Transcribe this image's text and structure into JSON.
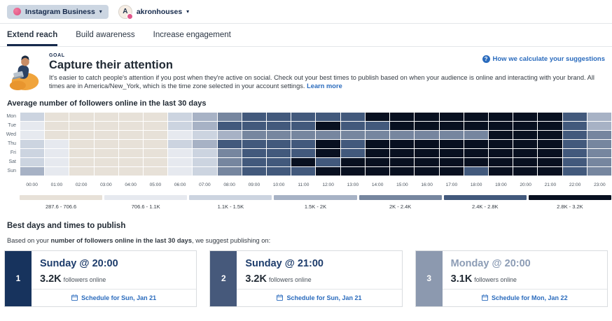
{
  "colors": {
    "accent_blue": "#2a6bbd",
    "navy": "#15294b",
    "pink": "#e0568b",
    "pill_bg": "#ccd6e2"
  },
  "topbar": {
    "channel_label": "Instagram Business",
    "account_name": "akronhouses",
    "avatar_letter": "A"
  },
  "tabs": [
    {
      "label": "Extend reach",
      "active": true
    },
    {
      "label": "Build awareness",
      "active": false
    },
    {
      "label": "Increase engagement",
      "active": false
    }
  ],
  "goal": {
    "eyebrow": "GOAL",
    "title": "Capture their attention",
    "description": "It's easier to catch people's attention if you post when they're active on social. Check out your best times to publish based on when your audience is online and interacting with your brand. All times are in America/New_York, which is the time zone selected in your account settings.",
    "learn_more_label": "Learn more",
    "help_link_label": "How we calculate your suggestions"
  },
  "chart_data": {
    "type": "heatmap",
    "title": "Average number of followers online in the last 30 days",
    "x": [
      "00:00",
      "01:00",
      "02:00",
      "03:00",
      "04:00",
      "05:00",
      "06:00",
      "07:00",
      "08:00",
      "09:00",
      "10:00",
      "11:00",
      "12:00",
      "13:00",
      "14:00",
      "15:00",
      "16:00",
      "17:00",
      "18:00",
      "19:00",
      "20:00",
      "21:00",
      "22:00",
      "23:00"
    ],
    "y": [
      "Mon",
      "Tue",
      "Wed",
      "Thu",
      "Fri",
      "Sat",
      "Sun"
    ],
    "palette": [
      "#e7e1d8",
      "#e6e9ef",
      "#ccd4e0",
      "#a7b2c5",
      "#76869f",
      "#42597c",
      "#081020"
    ],
    "legend": [
      "287.6 - 706.6",
      "706.6 - 1.1K",
      "1.1K - 1.5K",
      "1.5K - 2K",
      "2K - 2.4K",
      "2.4K - 2.8K",
      "2.8K - 3.2K"
    ],
    "grid": [
      [
        3,
        1,
        1,
        1,
        1,
        1,
        3,
        4,
        5,
        6,
        6,
        6,
        6,
        6,
        7,
        7,
        7,
        7,
        7,
        7,
        7,
        7,
        6,
        4
      ],
      [
        2,
        1,
        1,
        1,
        1,
        1,
        3,
        4,
        6,
        6,
        6,
        6,
        7,
        6,
        6,
        7,
        7,
        7,
        7,
        7,
        7,
        7,
        6,
        4
      ],
      [
        2,
        1,
        1,
        1,
        1,
        1,
        2,
        3,
        4,
        5,
        5,
        5,
        5,
        5,
        5,
        5,
        5,
        5,
        5,
        7,
        7,
        7,
        6,
        5
      ],
      [
        3,
        2,
        1,
        1,
        1,
        1,
        3,
        4,
        6,
        6,
        6,
        6,
        7,
        6,
        7,
        7,
        7,
        7,
        7,
        7,
        7,
        7,
        6,
        5
      ],
      [
        3,
        2,
        1,
        1,
        1,
        1,
        2,
        3,
        5,
        6,
        6,
        6,
        7,
        6,
        7,
        7,
        7,
        7,
        7,
        7,
        7,
        7,
        6,
        5
      ],
      [
        3,
        2,
        1,
        1,
        1,
        1,
        2,
        3,
        5,
        6,
        6,
        7,
        6,
        7,
        7,
        7,
        7,
        7,
        7,
        7,
        7,
        7,
        6,
        5
      ],
      [
        4,
        2,
        1,
        1,
        1,
        1,
        2,
        3,
        5,
        6,
        6,
        6,
        7,
        7,
        7,
        7,
        7,
        7,
        6,
        7,
        7,
        7,
        6,
        5
      ]
    ]
  },
  "best_times": {
    "title": "Best days and times to publish",
    "intro_prefix": "Based on your ",
    "intro_bold": "number of followers online in the last 30 days",
    "intro_suffix": ", we suggest publishing on:",
    "cards": [
      {
        "rank": "1",
        "rank_color": "#17335d",
        "title": "Sunday @ 20:00",
        "title_color": "#1d3c6b",
        "value": "3.2K",
        "value_suffix": "followers online",
        "schedule_label": "Schedule for Sun, Jan 21"
      },
      {
        "rank": "2",
        "rank_color": "#46597b",
        "title": "Sunday @ 21:00",
        "title_color": "#1d3c6b",
        "value": "3.2K",
        "value_suffix": "followers online",
        "schedule_label": "Schedule for Sun, Jan 21"
      },
      {
        "rank": "3",
        "rank_color": "#8c99af",
        "title": "Monday @ 20:00",
        "title_color": "#8c9cb5",
        "value": "3.1K",
        "value_suffix": "followers online",
        "schedule_label": "Schedule for Mon, Jan 22"
      }
    ]
  }
}
